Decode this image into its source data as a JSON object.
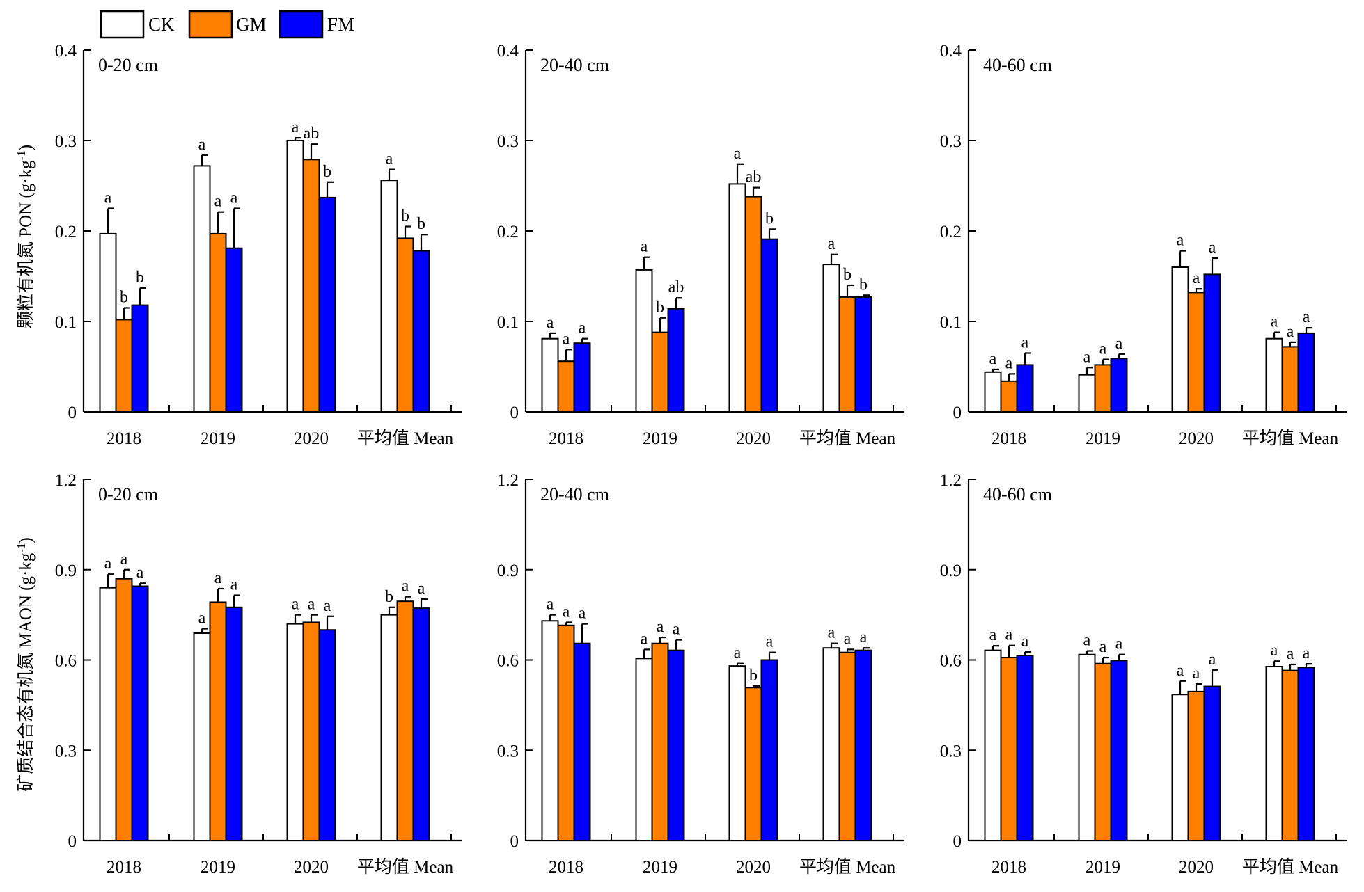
{
  "legend": {
    "items": [
      {
        "name": "CK",
        "color": "#ffffff"
      },
      {
        "name": "GM",
        "color": "#ff8000"
      },
      {
        "name": "FM",
        "color": "#0000ff"
      }
    ],
    "placement": "top-left"
  },
  "y_labels": {
    "top": "颗粒有机氮 PON (g·kg-1)",
    "bottom": "矿质结合态有机氮 MAON (g·kg-1)"
  },
  "chart_data": [
    {
      "type": "bar",
      "panel_label": "0-20 cm",
      "ylim": [
        0,
        0.4
      ],
      "yticks": [
        "0",
        "0.1",
        "0.2",
        "0.3",
        "0.4"
      ],
      "ytick_values": [
        0,
        0.1,
        0.2,
        0.3,
        0.4
      ],
      "categories": [
        "2018",
        "2019",
        "2020",
        "平均值 Mean"
      ],
      "series": [
        {
          "name": "CK",
          "values": [
            0.197,
            0.272,
            0.3,
            0.256
          ],
          "errors": [
            0.028,
            0.012,
            0.003,
            0.012
          ],
          "letters": [
            "a",
            "a",
            "a",
            "a"
          ]
        },
        {
          "name": "GM",
          "values": [
            0.102,
            0.197,
            0.279,
            0.192
          ],
          "errors": [
            0.013,
            0.024,
            0.017,
            0.013
          ],
          "letters": [
            "b",
            "a",
            "ab",
            "b"
          ]
        },
        {
          "name": "FM",
          "values": [
            0.118,
            0.181,
            0.237,
            0.178
          ],
          "errors": [
            0.019,
            0.044,
            0.017,
            0.018
          ],
          "letters": [
            "b",
            "a",
            "b",
            "b"
          ]
        }
      ]
    },
    {
      "type": "bar",
      "panel_label": "20-40 cm",
      "ylim": [
        0,
        0.4
      ],
      "yticks": [
        "0",
        "0.1",
        "0.2",
        "0.3",
        "0.4"
      ],
      "ytick_values": [
        0,
        0.1,
        0.2,
        0.3,
        0.4
      ],
      "categories": [
        "2018",
        "2019",
        "2020",
        "平均值 Mean"
      ],
      "series": [
        {
          "name": "CK",
          "values": [
            0.081,
            0.157,
            0.252,
            0.163
          ],
          "errors": [
            0.006,
            0.014,
            0.022,
            0.011
          ],
          "letters": [
            "a",
            "a",
            "a",
            "a"
          ]
        },
        {
          "name": "GM",
          "values": [
            0.056,
            0.088,
            0.238,
            0.127
          ],
          "errors": [
            0.013,
            0.016,
            0.01,
            0.013
          ],
          "letters": [
            "a",
            "b",
            "ab",
            "b"
          ]
        },
        {
          "name": "FM",
          "values": [
            0.076,
            0.114,
            0.191,
            0.127
          ],
          "errors": [
            0.005,
            0.012,
            0.011,
            0.002
          ],
          "letters": [
            "a",
            "ab",
            "b",
            "b"
          ]
        }
      ]
    },
    {
      "type": "bar",
      "panel_label": "40-60 cm",
      "ylim": [
        0,
        0.4
      ],
      "yticks": [
        "0",
        "0.1",
        "0.2",
        "0.3",
        "0.4"
      ],
      "ytick_values": [
        0,
        0.1,
        0.2,
        0.3,
        0.4
      ],
      "categories": [
        "2018",
        "2019",
        "2020",
        "平均值 Mean"
      ],
      "series": [
        {
          "name": "CK",
          "values": [
            0.044,
            0.041,
            0.16,
            0.081
          ],
          "errors": [
            0.003,
            0.008,
            0.018,
            0.007
          ],
          "letters": [
            "a",
            "a",
            "a",
            "a"
          ]
        },
        {
          "name": "GM",
          "values": [
            0.034,
            0.052,
            0.132,
            0.072
          ],
          "errors": [
            0.008,
            0.006,
            0.004,
            0.005
          ],
          "letters": [
            "a",
            "a",
            "a",
            "a"
          ]
        },
        {
          "name": "FM",
          "values": [
            0.052,
            0.059,
            0.152,
            0.087
          ],
          "errors": [
            0.013,
            0.005,
            0.018,
            0.006
          ],
          "letters": [
            "a",
            "a",
            "a",
            "a"
          ]
        }
      ]
    },
    {
      "type": "bar",
      "panel_label": "0-20 cm",
      "ylim": [
        0,
        1.2
      ],
      "yticks": [
        "0",
        "0.3",
        "0.6",
        "0.9",
        "1.2"
      ],
      "ytick_values": [
        0,
        0.3,
        0.6,
        0.9,
        1.2
      ],
      "categories": [
        "2018",
        "2019",
        "2020",
        "平均值 Mean"
      ],
      "series": [
        {
          "name": "CK",
          "values": [
            0.84,
            0.689,
            0.72,
            0.75
          ],
          "errors": [
            0.045,
            0.015,
            0.03,
            0.025
          ],
          "letters": [
            "a",
            "a",
            "a",
            "b"
          ]
        },
        {
          "name": "GM",
          "values": [
            0.87,
            0.792,
            0.725,
            0.795
          ],
          "errors": [
            0.03,
            0.045,
            0.025,
            0.015
          ],
          "letters": [
            "a",
            "a",
            "a",
            "a"
          ]
        },
        {
          "name": "FM",
          "values": [
            0.845,
            0.775,
            0.7,
            0.772
          ],
          "errors": [
            0.01,
            0.04,
            0.045,
            0.03
          ],
          "letters": [
            "a",
            "a",
            "a",
            "a"
          ]
        }
      ]
    },
    {
      "type": "bar",
      "panel_label": "20-40 cm",
      "ylim": [
        0,
        1.2
      ],
      "yticks": [
        "0",
        "0.3",
        "0.6",
        "0.9",
        "1.2"
      ],
      "ytick_values": [
        0,
        0.3,
        0.6,
        0.9,
        1.2
      ],
      "categories": [
        "2018",
        "2019",
        "2020",
        "平均值 Mean"
      ],
      "series": [
        {
          "name": "CK",
          "values": [
            0.73,
            0.605,
            0.58,
            0.64
          ],
          "errors": [
            0.02,
            0.03,
            0.008,
            0.015
          ],
          "letters": [
            "a",
            "a",
            "a",
            "a"
          ]
        },
        {
          "name": "GM",
          "values": [
            0.715,
            0.655,
            0.508,
            0.625
          ],
          "errors": [
            0.01,
            0.02,
            0.005,
            0.01
          ],
          "letters": [
            "a",
            "a",
            "b",
            "a"
          ]
        },
        {
          "name": "FM",
          "values": [
            0.655,
            0.632,
            0.6,
            0.632
          ],
          "errors": [
            0.065,
            0.035,
            0.025,
            0.008
          ],
          "letters": [
            "a",
            "a",
            "a",
            "a"
          ]
        }
      ]
    },
    {
      "type": "bar",
      "panel_label": "40-60 cm",
      "ylim": [
        0,
        1.2
      ],
      "yticks": [
        "0",
        "0.3",
        "0.6",
        "0.9",
        "1.2"
      ],
      "ytick_values": [
        0,
        0.3,
        0.6,
        0.9,
        1.2
      ],
      "categories": [
        "2018",
        "2019",
        "2020",
        "平均值 Mean"
      ],
      "series": [
        {
          "name": "CK",
          "values": [
            0.632,
            0.618,
            0.485,
            0.578
          ],
          "errors": [
            0.015,
            0.012,
            0.045,
            0.018
          ],
          "letters": [
            "a",
            "a",
            "a",
            "a"
          ]
        },
        {
          "name": "GM",
          "values": [
            0.608,
            0.588,
            0.495,
            0.565
          ],
          "errors": [
            0.04,
            0.02,
            0.025,
            0.02
          ],
          "letters": [
            "a",
            "a",
            "a",
            "a"
          ]
        },
        {
          "name": "FM",
          "values": [
            0.615,
            0.598,
            0.512,
            0.575
          ],
          "errors": [
            0.012,
            0.02,
            0.055,
            0.012
          ],
          "letters": [
            "a",
            "a",
            "a",
            "a"
          ]
        }
      ]
    }
  ]
}
